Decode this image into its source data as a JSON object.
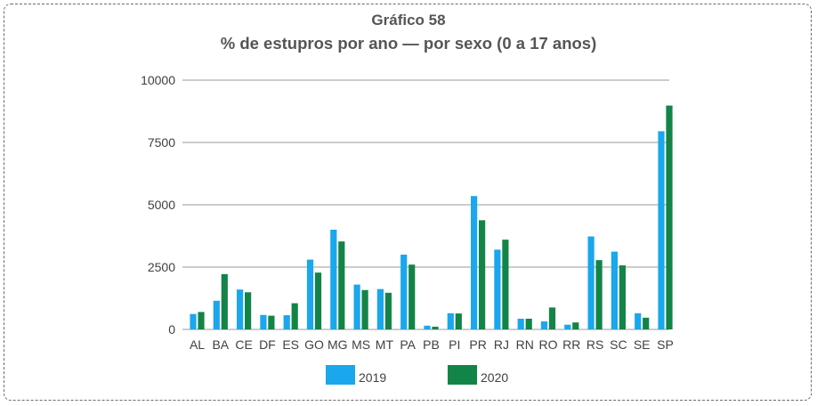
{
  "chart_data": {
    "type": "bar",
    "title": "Gráfico 58",
    "subtitle": "% de estupros por ano — por sexo (0 a 17 anos)",
    "categories": [
      "AL",
      "BA",
      "CE",
      "DF",
      "ES",
      "GO",
      "MG",
      "MS",
      "MT",
      "PA",
      "PB",
      "PI",
      "PR",
      "RJ",
      "RN",
      "RO",
      "RR",
      "RS",
      "SC",
      "SE",
      "SP"
    ],
    "series": [
      {
        "name": "2019",
        "color": "#1aa7ec",
        "values": [
          620,
          1150,
          1600,
          580,
          570,
          2800,
          4000,
          1800,
          1620,
          3000,
          150,
          650,
          5350,
          3200,
          430,
          320,
          190,
          3730,
          3120,
          650,
          7950
        ]
      },
      {
        "name": "2020",
        "color": "#138447",
        "values": [
          700,
          2220,
          1490,
          550,
          1050,
          2280,
          3530,
          1580,
          1470,
          2600,
          110,
          640,
          4380,
          3600,
          430,
          880,
          280,
          2780,
          2570,
          470,
          8980
        ]
      }
    ],
    "yticks": [
      0,
      2500,
      5000,
      7500,
      10000
    ],
    "ytick_labels": [
      "0",
      "2500",
      "5000",
      "7500",
      "10000"
    ],
    "ylim": [
      0,
      10000
    ],
    "xlabel": "",
    "ylabel": "",
    "grid": true,
    "legend_position": "bottom"
  }
}
